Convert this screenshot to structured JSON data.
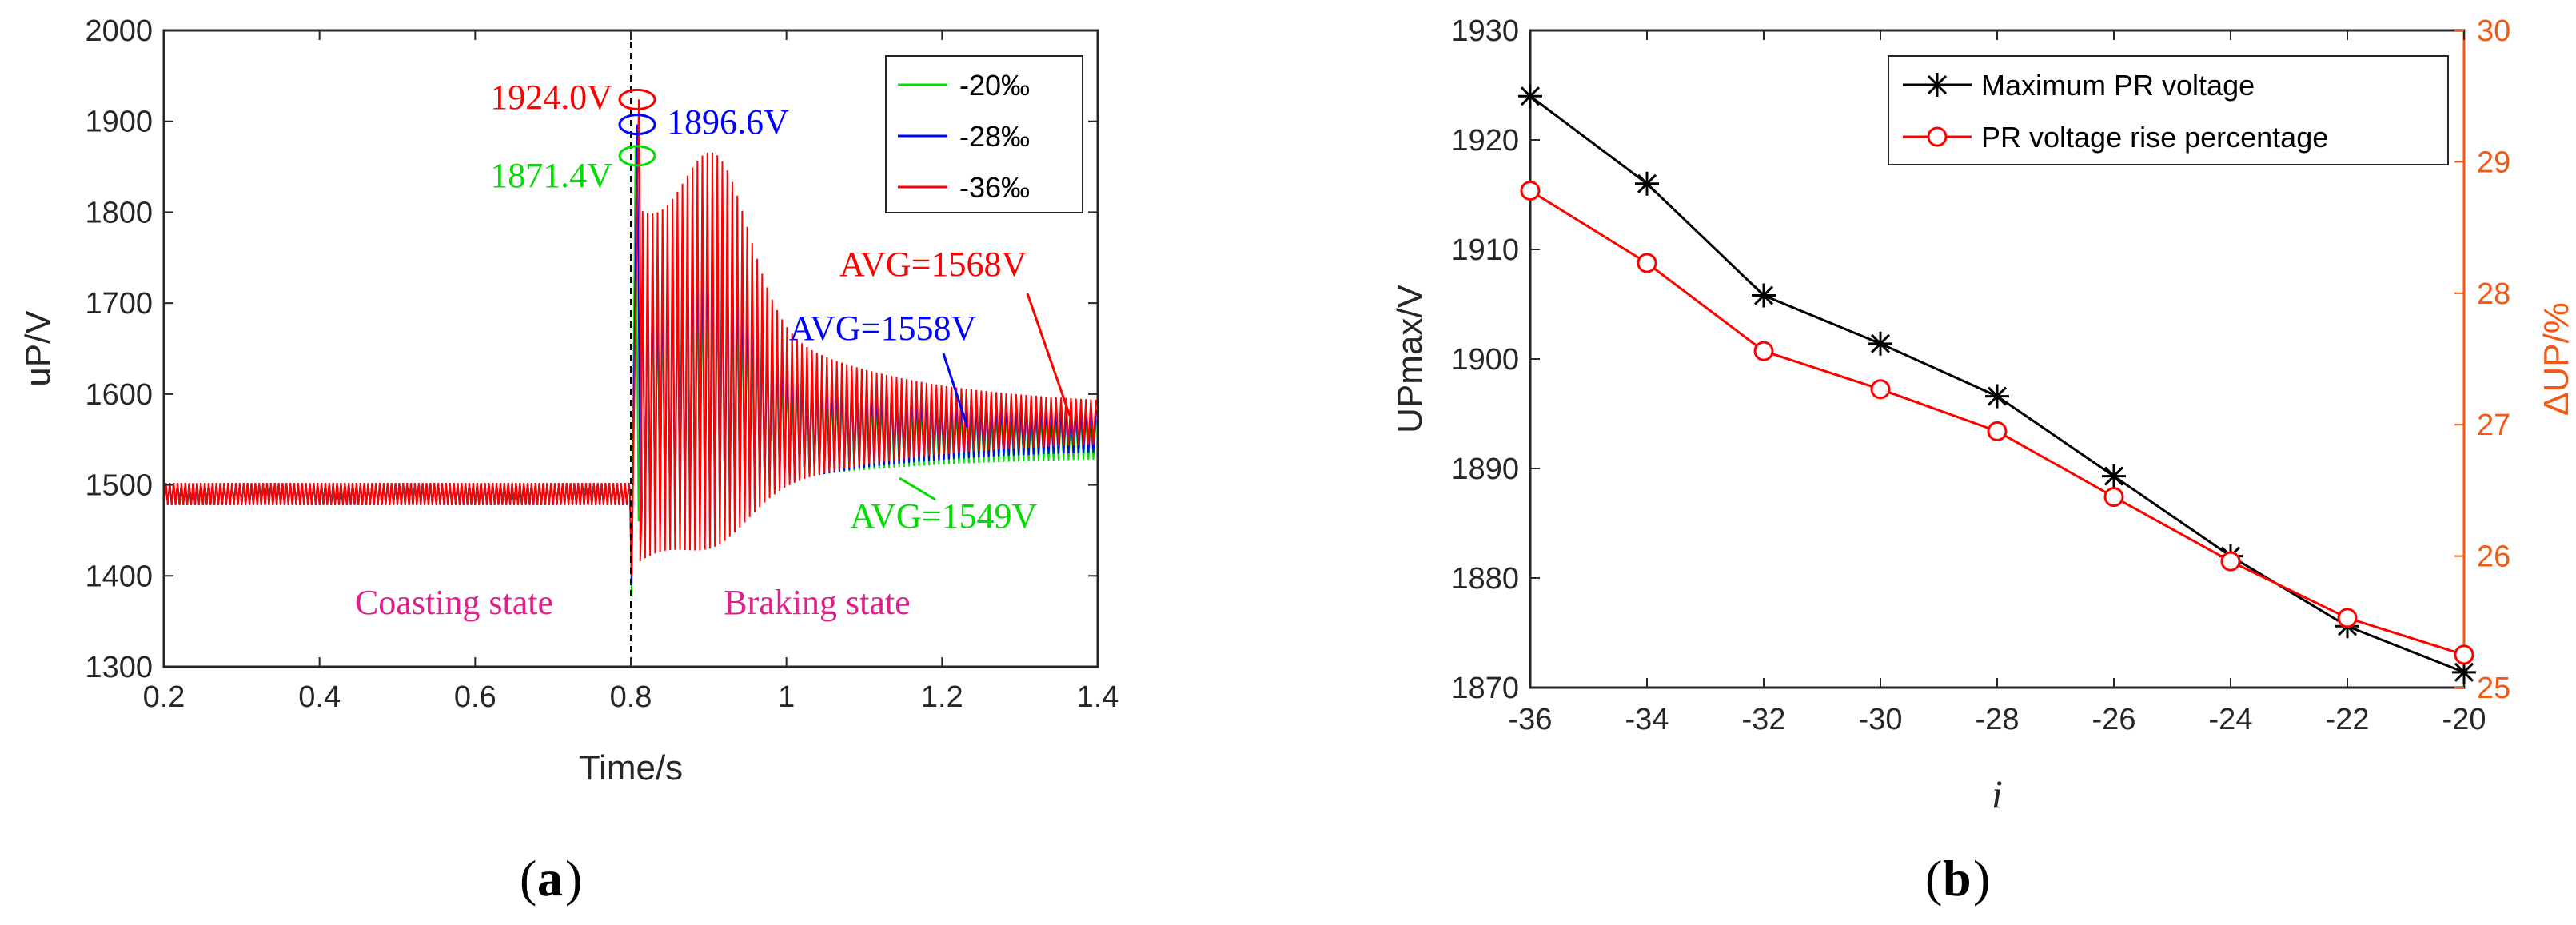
{
  "colors": {
    "green": "#00dd00",
    "blue": "#0000ff",
    "red": "#ff0000",
    "magenta": "#e0208a",
    "orange": "#f05a14",
    "black": "#000000"
  },
  "chart_data": [
    {
      "id": "a",
      "type": "line",
      "caption_label": "a",
      "xlabel": "Time/s",
      "ylabel": "uP/V",
      "xlim": [
        0.2,
        1.4
      ],
      "ylim": [
        1300,
        2000
      ],
      "xticks": [
        "0.2",
        "0.4",
        "0.6",
        "0.8",
        "1",
        "1.2",
        "1.4"
      ],
      "yticks": [
        "1300",
        "1400",
        "1500",
        "1600",
        "1700",
        "1800",
        "1900",
        "2000"
      ],
      "event_time": 0.8,
      "series": [
        {
          "name": "-20‰",
          "color": "#00dd00",
          "steady_before": 1490,
          "peak": 1871.4,
          "avg_after": 1549
        },
        {
          "name": "-28‰",
          "color": "#0000ff",
          "steady_before": 1490,
          "peak": 1896.6,
          "avg_after": 1558
        },
        {
          "name": "-36‰",
          "color": "#ff0000",
          "steady_before": 1490,
          "peak": 1924.0,
          "avg_after": 1568
        }
      ],
      "peak_labels": [
        "1924.0V",
        "1896.6V",
        "1871.4V"
      ],
      "avg_labels": [
        "AVG=1568V",
        "AVG=1558V",
        "AVG=1549V"
      ],
      "state_labels": [
        "Coasting state",
        "Braking state"
      ],
      "legend_position": "top-right"
    },
    {
      "id": "b",
      "type": "line",
      "caption_label": "b",
      "xlabel": "i",
      "ylabel": "UPmax/V",
      "ylabel_right": "ΔUP/%",
      "x": [
        -36,
        -34,
        -32,
        -30,
        -28,
        -26,
        -24,
        -22,
        -20
      ],
      "xlim": [
        -36,
        -20
      ],
      "ylim": [
        1870,
        1930
      ],
      "ylim_right": [
        25,
        30
      ],
      "xticks": [
        "-36",
        "-34",
        "-32",
        "-30",
        "-28",
        "-26",
        "-24",
        "-22",
        "-20"
      ],
      "yticks": [
        "1870",
        "1880",
        "1890",
        "1900",
        "1910",
        "1920",
        "1930"
      ],
      "yticks_right": [
        "25",
        "26",
        "27",
        "28",
        "29",
        "30"
      ],
      "series": [
        {
          "name": "Maximum PR voltage",
          "axis": "left",
          "color": "#000000",
          "marker": "asterisk",
          "values": [
            1924.0,
            1916.0,
            1905.8,
            1901.4,
            1896.6,
            1889.3,
            1882.0,
            1875.6,
            1871.4
          ]
        },
        {
          "name": "PR voltage rise percentage",
          "axis": "right",
          "color": "#ff0000",
          "marker": "circle",
          "values": [
            28.78,
            28.23,
            27.56,
            27.27,
            26.95,
            26.45,
            25.96,
            25.53,
            25.25
          ]
        }
      ],
      "legend_position": "top-right"
    }
  ]
}
